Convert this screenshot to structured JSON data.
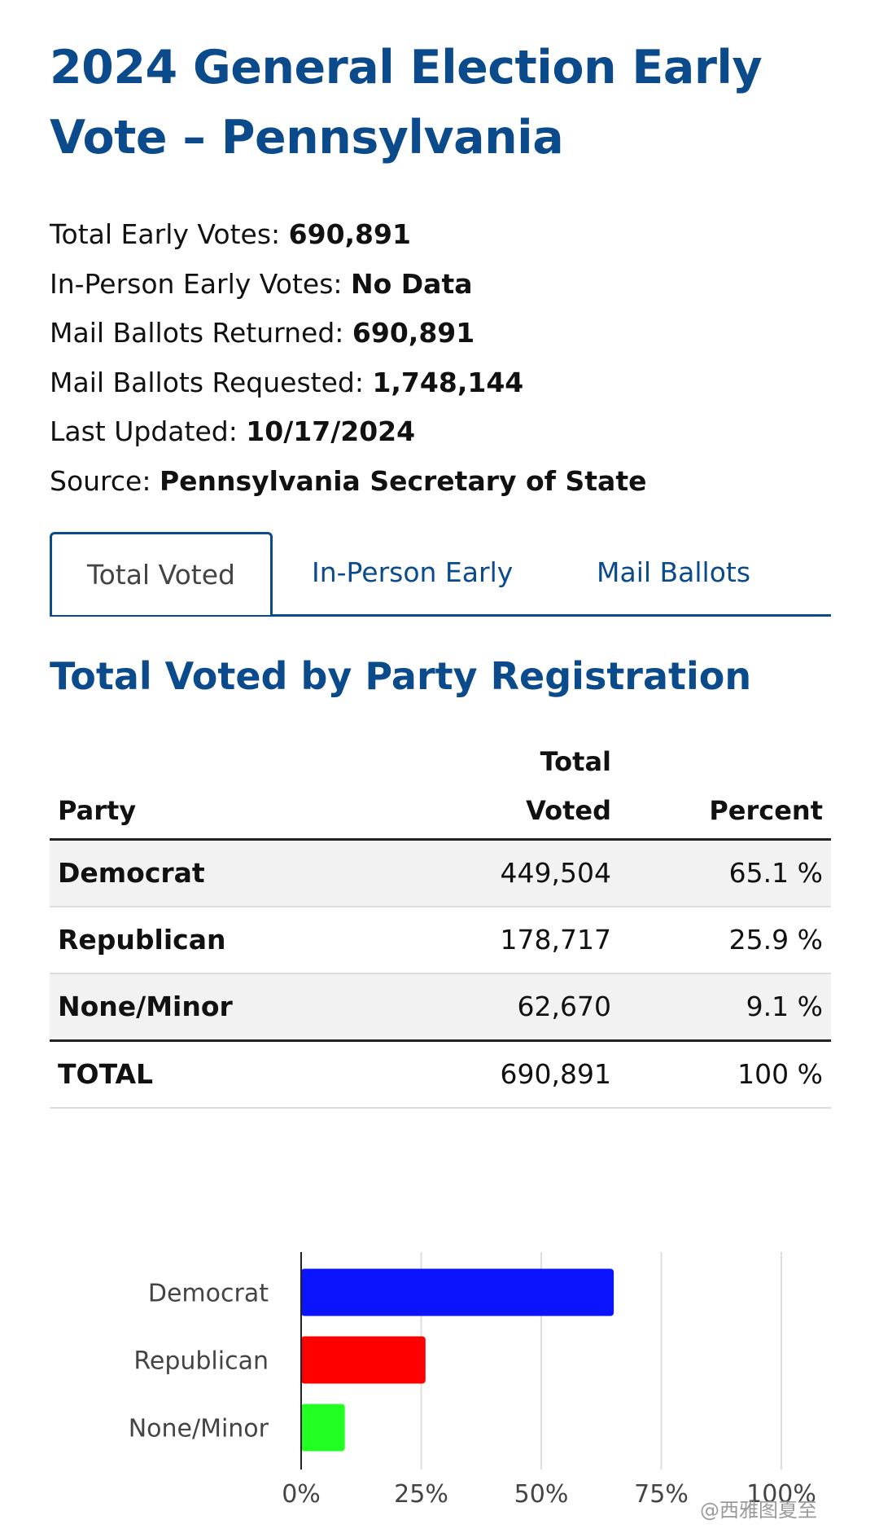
{
  "header": {
    "title_line1": "2024 General Election Early",
    "title_line2": "Vote – Pennsylvania"
  },
  "stats": [
    {
      "label": "Total Early Votes: ",
      "value": "690,891"
    },
    {
      "label": "In-Person Early Votes: ",
      "value": "No Data"
    },
    {
      "label": "Mail Ballots Returned: ",
      "value": "690,891"
    },
    {
      "label": "Mail Ballots Requested: ",
      "value": "1,748,144"
    },
    {
      "label": "Last Updated: ",
      "value": "10/17/2024"
    },
    {
      "label": "Source: ",
      "value": "Pennsylvania Secretary of State"
    }
  ],
  "tabs": {
    "total_voted": "Total Voted",
    "in_person": "In-Person Early",
    "mail": "Mail Ballots"
  },
  "section_title": "Total Voted by Party Registration",
  "table": {
    "headers": {
      "party": "Party",
      "total_line1": "Total",
      "total_line2": "Voted",
      "percent": "Percent"
    },
    "rows": [
      {
        "party": "Democrat",
        "total": "449,504",
        "percent": "65.1 %"
      },
      {
        "party": "Republican",
        "total": "178,717",
        "percent": "25.9 %"
      },
      {
        "party": "None/Minor",
        "total": "62,670",
        "percent": "9.1 %"
      }
    ],
    "total_row": {
      "party": "TOTAL",
      "total": "690,891",
      "percent": "100 %"
    }
  },
  "chart_data": {
    "type": "bar",
    "orientation": "horizontal",
    "categories": [
      "Democrat",
      "Republican",
      "None/Minor"
    ],
    "values": [
      65.1,
      25.9,
      9.1
    ],
    "colors": [
      "#0a14ff",
      "#ff0000",
      "#22ff22"
    ],
    "xlim": [
      0,
      100
    ],
    "xticks": [
      "0%",
      "25%",
      "50%",
      "75%",
      "100%"
    ],
    "grid": true
  },
  "watermark": "@西雅图夏至"
}
